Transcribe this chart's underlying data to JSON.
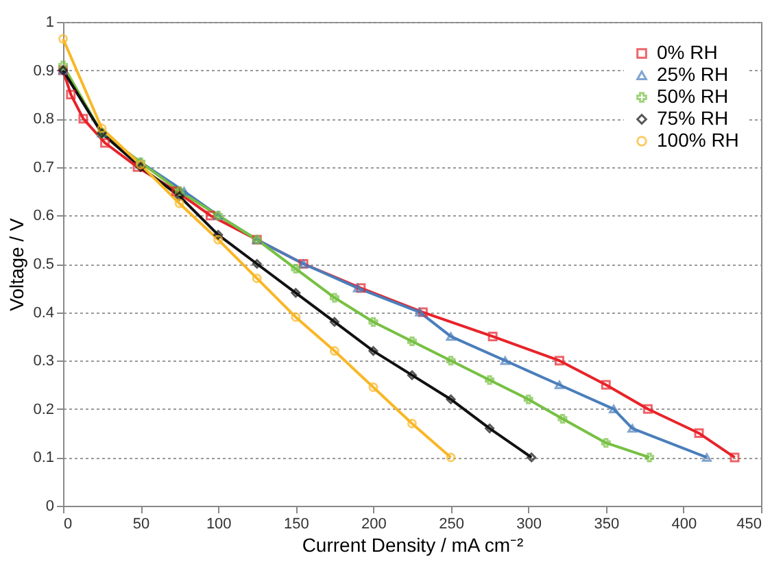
{
  "chart_data": {
    "type": "line",
    "xlabel": "Current Density / mA cm⁻²",
    "ylabel": "Voltage / V",
    "xlim": [
      0,
      450
    ],
    "xticks": [
      0,
      50,
      100,
      150,
      200,
      250,
      300,
      350,
      400,
      450
    ],
    "ylim": [
      0,
      1
    ],
    "yticks": [
      0,
      0.1,
      0.2,
      0.3,
      0.4,
      0.5,
      0.6,
      0.7,
      0.8,
      0.9,
      1
    ],
    "grid": "y",
    "legend": "top right",
    "line_style": "solid",
    "series": [
      {
        "name": "0% RH",
        "color": "#e8232a",
        "marker": "square",
        "x": [
          0,
          5,
          13,
          27,
          48,
          73,
          95,
          125,
          155,
          192,
          232,
          277,
          320,
          350,
          377,
          410,
          433
        ],
        "values": [
          0.9,
          0.85,
          0.8,
          0.75,
          0.7,
          0.65,
          0.6,
          0.55,
          0.5,
          0.45,
          0.4,
          0.35,
          0.3,
          0.25,
          0.2,
          0.15,
          0.1
        ]
      },
      {
        "name": "25% RH",
        "color": "#4a7ebb",
        "marker": "triangle",
        "x": [
          0,
          25,
          50,
          78,
          100,
          125,
          155,
          190,
          230,
          250,
          285,
          320,
          355,
          367,
          415
        ],
        "values": [
          0.9,
          0.77,
          0.71,
          0.65,
          0.6,
          0.55,
          0.5,
          0.45,
          0.4,
          0.35,
          0.3,
          0.25,
          0.2,
          0.16,
          0.1
        ]
      },
      {
        "name": "50% RH",
        "color": "#77c043",
        "marker": "cross",
        "x": [
          0,
          25,
          50,
          75,
          100,
          125,
          150,
          175,
          200,
          225,
          250,
          275,
          300,
          322,
          350,
          378
        ],
        "values": [
          0.91,
          0.77,
          0.71,
          0.65,
          0.6,
          0.55,
          0.49,
          0.43,
          0.38,
          0.34,
          0.3,
          0.26,
          0.22,
          0.18,
          0.13,
          0.1
        ]
      },
      {
        "name": "75% RH",
        "color": "#111111",
        "marker": "diamond",
        "x": [
          0,
          25,
          50,
          75,
          100,
          125,
          150,
          175,
          200,
          225,
          250,
          275,
          302
        ],
        "values": [
          0.9,
          0.77,
          0.7,
          0.64,
          0.56,
          0.5,
          0.44,
          0.38,
          0.32,
          0.27,
          0.22,
          0.16,
          0.1
        ]
      },
      {
        "name": "100% RH",
        "color": "#f9b726",
        "marker": "circle",
        "x": [
          0,
          25,
          50,
          75,
          100,
          125,
          150,
          175,
          200,
          225,
          250
        ],
        "values": [
          0.965,
          0.78,
          0.705,
          0.625,
          0.55,
          0.47,
          0.39,
          0.32,
          0.245,
          0.17,
          0.1
        ]
      }
    ]
  }
}
